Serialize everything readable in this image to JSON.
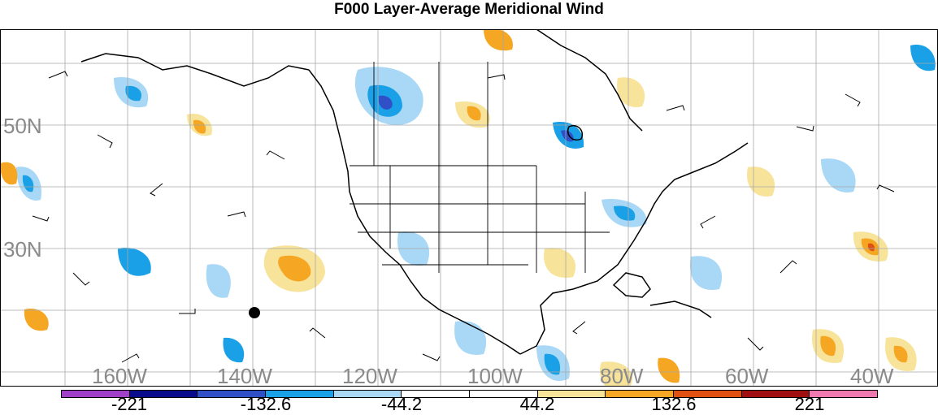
{
  "title": "F000 Layer-Average Meridional Wind",
  "map": {
    "lat_labels": [
      "50N",
      "30N"
    ],
    "lon_labels": [
      "160W",
      "140W",
      "120W",
      "100W",
      "80W",
      "60W",
      "40W"
    ],
    "label_color": "#8a8a8a"
  },
  "colorbar": {
    "colors": [
      "#a040c8",
      "#0a0a8c",
      "#3050c8",
      "#1aa0e6",
      "#a8d8f5",
      "#ffffff",
      "#ffffff",
      "#f7e39a",
      "#f5a623",
      "#e05010",
      "#a01010",
      "#f07ab0"
    ],
    "labels": [
      "-221",
      "-132.6",
      "-44.2",
      "44.2",
      "132.6",
      "221"
    ]
  }
}
